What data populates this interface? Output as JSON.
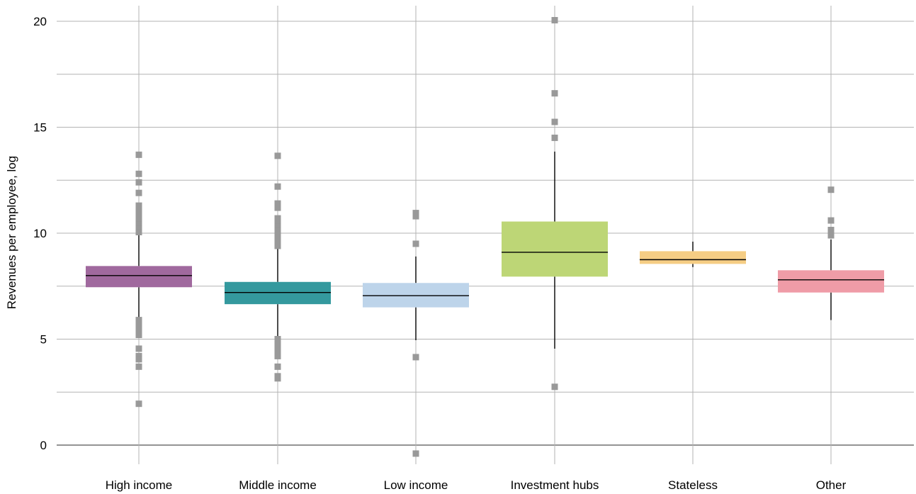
{
  "chart_data": {
    "type": "box",
    "title": "",
    "xlabel": "",
    "ylabel": "Revenues per employee, log",
    "ylim": [
      -1,
      20.8
    ],
    "yticks": [
      0,
      5,
      10,
      15,
      20
    ],
    "grid": true,
    "categories": [
      "High income",
      "Middle income",
      "Low income",
      "Investment hubs",
      "Stateless",
      "Other"
    ],
    "series": [
      {
        "category": "High income",
        "color": "#a0699e",
        "q1": 7.45,
        "median": 8.0,
        "q3": 8.45,
        "whisker_low": 6.0,
        "whisker_high": 9.95,
        "outliers": [
          13.7,
          12.8,
          12.4,
          11.9,
          11.3,
          11.1,
          10.9,
          10.8,
          10.6,
          10.4,
          10.2,
          10.05,
          5.9,
          5.7,
          5.5,
          5.3,
          5.2,
          4.55,
          4.2,
          4.05,
          3.7,
          1.95
        ]
      },
      {
        "category": "Middle income",
        "color": "#34999e",
        "q1": 6.65,
        "median": 7.2,
        "q3": 7.7,
        "whisker_low": 5.1,
        "whisker_high": 9.3,
        "outliers": [
          13.65,
          12.2,
          11.4,
          11.2,
          10.7,
          10.5,
          10.3,
          10.1,
          9.9,
          9.6,
          9.4,
          5.0,
          4.8,
          4.6,
          4.4,
          4.2,
          3.7,
          3.25,
          3.15
        ]
      },
      {
        "category": "Low income",
        "color": "#bdd4ea",
        "q1": 6.5,
        "median": 7.05,
        "q3": 7.65,
        "whisker_low": 4.95,
        "whisker_high": 8.9,
        "outliers": [
          10.95,
          10.8,
          9.5,
          4.15,
          -0.4
        ]
      },
      {
        "category": "Investment hubs",
        "color": "#bdd676",
        "q1": 7.95,
        "median": 9.1,
        "q3": 10.55,
        "whisker_low": 4.55,
        "whisker_high": 13.85,
        "outliers": [
          20.05,
          16.6,
          15.25,
          14.5,
          2.75
        ]
      },
      {
        "category": "Stateless",
        "color": "#f5cd84",
        "q1": 8.55,
        "median": 8.75,
        "q3": 9.15,
        "whisker_low": 8.4,
        "whisker_high": 9.6,
        "outliers": []
      },
      {
        "category": "Other",
        "color": "#ef9ca7",
        "q1": 7.2,
        "median": 7.8,
        "q3": 8.25,
        "whisker_low": 5.9,
        "whisker_high": 9.7,
        "outliers": [
          12.05,
          10.6,
          10.15,
          10.05,
          9.9
        ]
      }
    ]
  }
}
